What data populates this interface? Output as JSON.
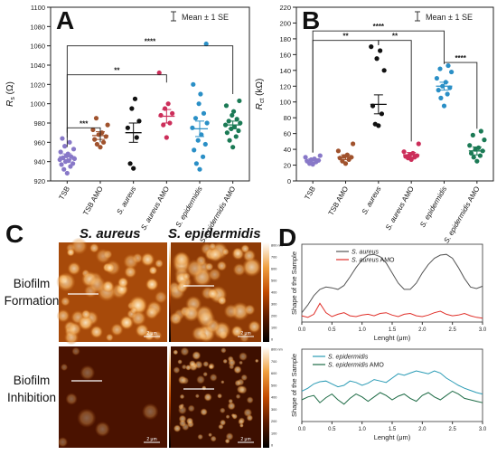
{
  "chart_data": [
    {
      "type": "scatter",
      "panel_letter": "A",
      "legend": "Mean ± 1 SE",
      "ylabel": "Rs (Ω)",
      "ylabel_main": "R",
      "ylabel_sub": "s",
      "ylabel_unit": "(Ω)",
      "ylim": [
        920,
        1100
      ],
      "yticks": [
        920,
        940,
        960,
        980,
        1000,
        1020,
        1040,
        1060,
        1080,
        1100
      ],
      "categories": [
        "TSB",
        "TSB AMO",
        "S. aureus",
        "S. aureus AMO",
        "S. epidermidis",
        "S. epidermidis AMO"
      ],
      "colors": [
        "#8878c8",
        "#a0522d",
        "#111111",
        "#cc2e5a",
        "#2a8fc6",
        "#1b7a55"
      ],
      "means": [
        945,
        967,
        970,
        987,
        974,
        978
      ],
      "se": [
        3,
        4,
        10,
        7,
        8,
        4
      ],
      "points": [
        [
          928,
          932,
          935,
          937,
          938,
          940,
          941,
          942,
          943,
          944,
          945,
          946,
          948,
          950,
          953,
          956,
          960,
          964
        ],
        [
          955,
          958,
          960,
          963,
          966,
          968,
          970,
          973,
          978,
          985
        ],
        [
          933,
          938,
          965,
          975,
          982,
          995,
          1005
        ],
        [
          965,
          978,
          980,
          988,
          990,
          995,
          1000,
          1032
        ],
        [
          932,
          938,
          945,
          952,
          958,
          962,
          968,
          975,
          980,
          985,
          990,
          1000,
          1010,
          1020,
          1062
        ],
        [
          955,
          962,
          966,
          970,
          972,
          974,
          976,
          978,
          980,
          982,
          984,
          988,
          992,
          998,
          1003
        ]
      ],
      "significance": [
        {
          "label": "***",
          "from": 0,
          "to": 1
        },
        {
          "label": "**",
          "from": 0,
          "to": 3
        },
        {
          "label": "****",
          "from": 0,
          "to": 5
        }
      ]
    },
    {
      "type": "scatter",
      "panel_letter": "B",
      "legend": "Mean ± 1 SE",
      "ylabel": "Rct (kΩ)",
      "ylabel_main": "R",
      "ylabel_sub": "ct",
      "ylabel_unit": "(kΩ)",
      "ylim": [
        0,
        220
      ],
      "yticks": [
        0,
        20,
        40,
        60,
        80,
        100,
        120,
        140,
        160,
        180,
        200,
        220
      ],
      "categories": [
        "TSB",
        "TSB AMO",
        "S. aureus",
        "S. aureus AMO",
        "S. epidermidis",
        "S. epidermidis AMO"
      ],
      "colors": [
        "#8878c8",
        "#a0522d",
        "#111111",
        "#cc2e5a",
        "#2a8fc6",
        "#1b7a55"
      ],
      "means": [
        26,
        30,
        97,
        33,
        120,
        38
      ],
      "se": [
        2,
        3,
        12,
        3,
        5,
        5
      ],
      "points": [
        [
          21,
          22,
          24,
          25,
          26,
          27,
          28,
          30,
          32
        ],
        [
          22,
          25,
          27,
          29,
          30,
          31,
          33,
          38,
          47
        ],
        [
          70,
          72,
          85,
          95,
          140,
          155,
          165,
          170
        ],
        [
          27,
          29,
          30,
          31,
          32,
          33,
          35,
          37,
          47
        ],
        [
          95,
          105,
          110,
          115,
          118,
          120,
          125,
          130,
          138,
          142,
          146
        ],
        [
          25,
          30,
          32,
          35,
          38,
          40,
          42,
          45,
          52,
          58,
          63
        ]
      ],
      "significance": [
        {
          "label": "**",
          "from": 0,
          "to": 2
        },
        {
          "label": "**",
          "from": 2,
          "to": 3
        },
        {
          "label": "****",
          "from": 0,
          "to": 4
        },
        {
          "label": "****",
          "from": 4,
          "to": 5
        }
      ]
    },
    {
      "type": "line",
      "panel_letter": "D",
      "xlabel": "Lenght (μm)",
      "ylabel": "Shape of the Sample",
      "xlim": [
        0,
        3.0
      ],
      "xticks": [
        0.0,
        0.5,
        1.0,
        1.5,
        2.0,
        2.5,
        3.0
      ],
      "series": [
        {
          "name": "S. aureus",
          "color": "#555555",
          "x": [
            0.0,
            0.1,
            0.2,
            0.3,
            0.4,
            0.5,
            0.6,
            0.7,
            0.8,
            0.9,
            1.0,
            1.1,
            1.2,
            1.3,
            1.4,
            1.5,
            1.6,
            1.7,
            1.8,
            1.9,
            2.0,
            2.1,
            2.2,
            2.3,
            2.4,
            2.5,
            2.6,
            2.7,
            2.8,
            2.9,
            3.0
          ],
          "y": [
            0.12,
            0.22,
            0.34,
            0.42,
            0.45,
            0.44,
            0.42,
            0.47,
            0.58,
            0.7,
            0.8,
            0.86,
            0.87,
            0.84,
            0.76,
            0.63,
            0.5,
            0.42,
            0.42,
            0.5,
            0.63,
            0.74,
            0.82,
            0.86,
            0.87,
            0.82,
            0.7,
            0.56,
            0.45,
            0.43,
            0.46
          ]
        },
        {
          "name": "S. aureus AMO",
          "color": "#e0302a",
          "x": [
            0.0,
            0.1,
            0.2,
            0.3,
            0.4,
            0.5,
            0.6,
            0.7,
            0.8,
            0.9,
            1.0,
            1.1,
            1.2,
            1.3,
            1.4,
            1.5,
            1.6,
            1.7,
            1.8,
            1.9,
            2.0,
            2.1,
            2.2,
            2.3,
            2.4,
            2.5,
            2.6,
            2.7,
            2.8,
            2.9,
            3.0
          ],
          "y": [
            0.08,
            0.06,
            0.1,
            0.24,
            0.12,
            0.07,
            0.1,
            0.12,
            0.08,
            0.07,
            0.09,
            0.1,
            0.08,
            0.11,
            0.12,
            0.09,
            0.07,
            0.1,
            0.11,
            0.08,
            0.07,
            0.09,
            0.12,
            0.14,
            0.1,
            0.08,
            0.09,
            0.11,
            0.08,
            0.06,
            0.05
          ]
        },
        {
          "name": "S. epidermidis",
          "color": "#2a9bb5",
          "x": [
            0.0,
            0.1,
            0.2,
            0.3,
            0.4,
            0.5,
            0.6,
            0.7,
            0.8,
            0.9,
            1.0,
            1.1,
            1.2,
            1.3,
            1.4,
            1.5,
            1.6,
            1.7,
            1.8,
            1.9,
            2.0,
            2.1,
            2.2,
            2.3,
            2.4,
            2.5,
            2.6,
            2.7,
            2.8,
            2.9,
            3.0
          ],
          "y": [
            0.42,
            0.46,
            0.52,
            0.55,
            0.56,
            0.52,
            0.48,
            0.5,
            0.56,
            0.54,
            0.5,
            0.53,
            0.58,
            0.56,
            0.54,
            0.6,
            0.66,
            0.64,
            0.67,
            0.7,
            0.68,
            0.66,
            0.7,
            0.67,
            0.6,
            0.55,
            0.5,
            0.46,
            0.43,
            0.4,
            0.38
          ]
        },
        {
          "name": "S. epidermidis AMO",
          "color": "#1d6b45",
          "x": [
            0.0,
            0.1,
            0.2,
            0.3,
            0.4,
            0.5,
            0.6,
            0.7,
            0.8,
            0.9,
            1.0,
            1.1,
            1.2,
            1.3,
            1.4,
            1.5,
            1.6,
            1.7,
            1.8,
            1.9,
            2.0,
            2.1,
            2.2,
            2.3,
            2.4,
            2.5,
            2.6,
            2.7,
            2.8,
            2.9,
            3.0
          ],
          "y": [
            0.3,
            0.34,
            0.36,
            0.26,
            0.33,
            0.38,
            0.3,
            0.24,
            0.32,
            0.38,
            0.34,
            0.28,
            0.34,
            0.4,
            0.36,
            0.3,
            0.35,
            0.38,
            0.32,
            0.28,
            0.36,
            0.4,
            0.34,
            0.3,
            0.36,
            0.42,
            0.38,
            0.32,
            0.3,
            0.28,
            0.26
          ]
        }
      ]
    }
  ],
  "afm": {
    "panel_letter": "C",
    "col_labels": [
      "S. aureus",
      "S. epidermidis"
    ],
    "row_labels": [
      "Biofilm Formation",
      "Biofilm Inhibition"
    ],
    "row_label_lines": [
      [
        "Biofilm",
        "Formation"
      ],
      [
        "Biofilm",
        "Inhibition"
      ]
    ],
    "scalebar": "2 μm",
    "colorbar_ticks": [
      "800 nm",
      "700",
      "600",
      "500",
      "400",
      "300",
      "200",
      "100",
      "0"
    ]
  }
}
